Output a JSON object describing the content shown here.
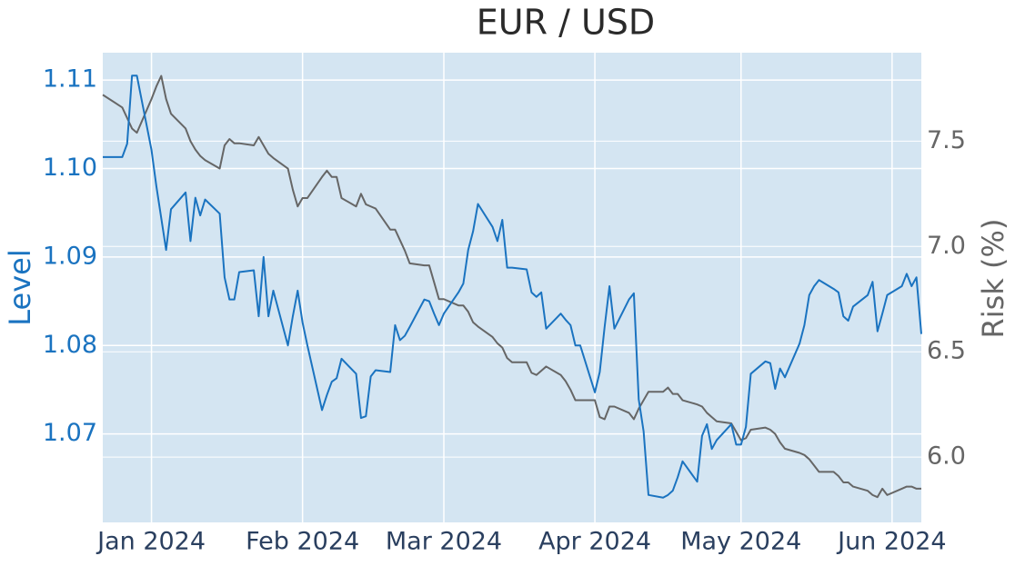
{
  "chart_data": {
    "type": "line",
    "title": "EUR / USD",
    "ylabel": "Level",
    "y2label": "Risk (%)",
    "x": [
      "2023-12-22",
      "2023-12-26",
      "2023-12-27",
      "2023-12-28",
      "2023-12-29",
      "2024-01-01",
      "2024-01-02",
      "2024-01-03",
      "2024-01-04",
      "2024-01-05",
      "2024-01-08",
      "2024-01-09",
      "2024-01-10",
      "2024-01-11",
      "2024-01-12",
      "2024-01-15",
      "2024-01-16",
      "2024-01-17",
      "2024-01-18",
      "2024-01-19",
      "2024-01-22",
      "2024-01-23",
      "2024-01-24",
      "2024-01-25",
      "2024-01-26",
      "2024-01-29",
      "2024-01-30",
      "2024-01-31",
      "2024-02-01",
      "2024-02-02",
      "2024-02-05",
      "2024-02-06",
      "2024-02-07",
      "2024-02-08",
      "2024-02-09",
      "2024-02-12",
      "2024-02-13",
      "2024-02-14",
      "2024-02-15",
      "2024-02-16",
      "2024-02-19",
      "2024-02-20",
      "2024-02-21",
      "2024-02-22",
      "2024-02-23",
      "2024-02-26",
      "2024-02-27",
      "2024-02-28",
      "2024-02-29",
      "2024-03-01",
      "2024-03-04",
      "2024-03-05",
      "2024-03-06",
      "2024-03-07",
      "2024-03-08",
      "2024-03-11",
      "2024-03-12",
      "2024-03-13",
      "2024-03-14",
      "2024-03-15",
      "2024-03-18",
      "2024-03-19",
      "2024-03-20",
      "2024-03-21",
      "2024-03-22",
      "2024-03-25",
      "2024-03-26",
      "2024-03-27",
      "2024-03-28",
      "2024-03-29",
      "2024-04-01",
      "2024-04-02",
      "2024-04-03",
      "2024-04-04",
      "2024-04-05",
      "2024-04-08",
      "2024-04-09",
      "2024-04-10",
      "2024-04-11",
      "2024-04-12",
      "2024-04-15",
      "2024-04-16",
      "2024-04-17",
      "2024-04-18",
      "2024-04-19",
      "2024-04-22",
      "2024-04-23",
      "2024-04-24",
      "2024-04-25",
      "2024-04-26",
      "2024-04-29",
      "2024-04-30",
      "2024-05-01",
      "2024-05-02",
      "2024-05-03",
      "2024-05-06",
      "2024-05-07",
      "2024-05-08",
      "2024-05-09",
      "2024-05-10",
      "2024-05-13",
      "2024-05-14",
      "2024-05-15",
      "2024-05-16",
      "2024-05-17",
      "2024-05-20",
      "2024-05-21",
      "2024-05-22",
      "2024-05-23",
      "2024-05-24",
      "2024-05-27",
      "2024-05-28",
      "2024-05-29",
      "2024-05-30",
      "2024-05-31",
      "2024-06-03",
      "2024-06-04",
      "2024-06-05",
      "2024-06-06",
      "2024-06-07"
    ],
    "series": [
      {
        "name": "Level",
        "color": "#1a73c0",
        "axis": "y",
        "values": [
          1.1013,
          1.1013,
          1.1028,
          1.1105,
          1.1105,
          1.1021,
          1.098,
          1.0944,
          1.0908,
          1.0954,
          1.0973,
          1.0918,
          1.0967,
          1.0947,
          1.0965,
          1.0949,
          1.0877,
          1.0852,
          1.0852,
          1.0883,
          1.0885,
          1.0833,
          1.09,
          1.0833,
          1.0862,
          1.08,
          1.0833,
          1.0862,
          1.0826,
          1.08,
          1.0727,
          1.0744,
          1.0759,
          1.0763,
          1.0785,
          1.0768,
          1.0718,
          1.072,
          1.0765,
          1.0772,
          1.077,
          1.0823,
          1.0806,
          1.0811,
          1.0821,
          1.0852,
          1.085,
          1.0836,
          1.0823,
          1.0836,
          1.086,
          1.087,
          1.0908,
          1.0929,
          1.096,
          1.0934,
          1.0918,
          1.0942,
          1.0888,
          1.0888,
          1.0886,
          1.086,
          1.0855,
          1.086,
          1.0819,
          1.0836,
          1.0829,
          1.0823,
          1.08,
          1.08,
          1.0747,
          1.077,
          1.0821,
          1.0867,
          1.0819,
          1.0852,
          1.0859,
          1.0739,
          1.0703,
          1.0631,
          1.0628,
          1.0631,
          1.0636,
          1.0651,
          1.0669,
          1.0646,
          1.0698,
          1.0711,
          1.0683,
          1.0693,
          1.0711,
          1.0688,
          1.0688,
          1.0708,
          1.0768,
          1.0782,
          1.078,
          1.0751,
          1.0774,
          1.0764,
          1.0802,
          1.0823,
          1.0857,
          1.0867,
          1.0874,
          1.0864,
          1.086,
          1.0833,
          1.0828,
          1.0844,
          1.0857,
          1.0872,
          1.0816,
          1.0836,
          1.0857,
          1.0867,
          1.0881,
          1.0867,
          1.0877,
          1.0813
        ]
      },
      {
        "name": "Risk (%)",
        "color": "#666666",
        "axis": "y2",
        "values": [
          7.72,
          7.66,
          7.61,
          7.56,
          7.54,
          7.7,
          7.76,
          7.81,
          7.7,
          7.63,
          7.56,
          7.5,
          7.46,
          7.43,
          7.41,
          7.37,
          7.48,
          7.51,
          7.49,
          7.49,
          7.48,
          7.52,
          7.48,
          7.44,
          7.42,
          7.37,
          7.27,
          7.19,
          7.23,
          7.23,
          7.33,
          7.36,
          7.33,
          7.33,
          7.23,
          7.19,
          7.25,
          7.2,
          7.19,
          7.18,
          7.08,
          7.08,
          7.03,
          6.98,
          6.92,
          6.91,
          6.91,
          6.83,
          6.75,
          6.75,
          6.72,
          6.72,
          6.69,
          6.64,
          6.62,
          6.57,
          6.54,
          6.52,
          6.47,
          6.45,
          6.45,
          6.4,
          6.39,
          6.41,
          6.43,
          6.39,
          6.36,
          6.32,
          6.27,
          6.27,
          6.27,
          6.19,
          6.18,
          6.24,
          6.24,
          6.21,
          6.18,
          6.23,
          6.27,
          6.31,
          6.31,
          6.33,
          6.3,
          6.3,
          6.27,
          6.25,
          6.24,
          6.21,
          6.19,
          6.17,
          6.16,
          6.12,
          6.08,
          6.09,
          6.13,
          6.14,
          6.13,
          6.11,
          6.07,
          6.04,
          6.02,
          6.01,
          5.99,
          5.96,
          5.93,
          5.93,
          5.91,
          5.88,
          5.88,
          5.86,
          5.84,
          5.82,
          5.81,
          5.85,
          5.82,
          5.85,
          5.86,
          5.86,
          5.85,
          5.85
        ]
      }
    ],
    "xlim": [
      "2023-12-22",
      "2024-06-07"
    ],
    "xticks": [
      {
        "value": "2024-01-01",
        "label": "Jan 2024"
      },
      {
        "value": "2024-02-01",
        "label": "Feb 2024"
      },
      {
        "value": "2024-03-01",
        "label": "Mar 2024"
      },
      {
        "value": "2024-04-01",
        "label": "Apr 2024"
      },
      {
        "value": "2024-05-01",
        "label": "May 2024"
      },
      {
        "value": "2024-06-01",
        "label": "Jun 2024"
      }
    ],
    "ylim": [
      1.06,
      1.1131
    ],
    "yticks": [
      1.07,
      1.08,
      1.09,
      {
        "value": 1.1,
        "label": "1.10"
      },
      1.11
    ],
    "y2lim": [
      5.69,
      7.92
    ],
    "y2ticks": [
      {
        "value": 6,
        "label": "6.0"
      },
      6.5,
      {
        "value": 7,
        "label": "7.0"
      },
      7.5
    ],
    "grid": true,
    "background": "#d4e5f2"
  }
}
